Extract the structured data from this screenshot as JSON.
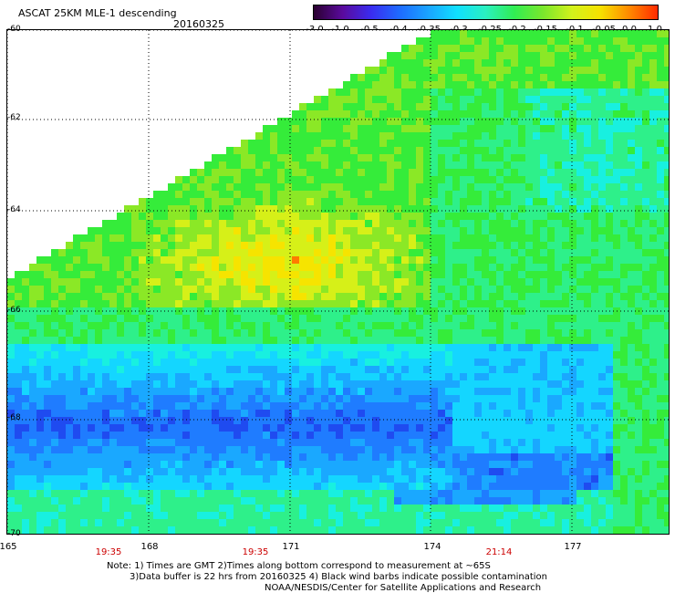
{
  "header": {
    "title": "ASCAT 25KM MLE-1 descending",
    "date": "20160325"
  },
  "colorbar": {
    "labels": [
      "-3.0",
      "-1.0",
      "-0.5",
      "-0.4",
      "-0.35",
      "-0.3",
      "-0.25",
      "-0.2",
      "-0.15",
      "-0.1",
      "-0.05",
      "0.0",
      "1.0"
    ],
    "colors": [
      "#2a0030",
      "#5a0a9c",
      "#3a2cf0",
      "#1e6bff",
      "#1aa4ff",
      "#10e0ff",
      "#2af0c0",
      "#31ee52",
      "#7ae82c",
      "#d2f21c",
      "#f6e200",
      "#ff8a00",
      "#ff2a00"
    ]
  },
  "map": {
    "lat_labels": [
      "-60",
      "-62",
      "-64",
      "-66",
      "-68",
      "-70"
    ],
    "lon_labels": [
      "165",
      "168",
      "171",
      "174",
      "177"
    ],
    "time_labels": [
      "19:35",
      "19:35",
      "21:14"
    ]
  },
  "notes": {
    "line1": "Note: 1) Times are GMT 2)Times along bottom correspond to measurement at ~65S",
    "line2": "3)Data buffer is 22 hrs from 20160325 4) Black wind barbs indicate possible contamination",
    "line3": "NOAA/NESDIS/Center for Satellite Applications and Research"
  }
}
